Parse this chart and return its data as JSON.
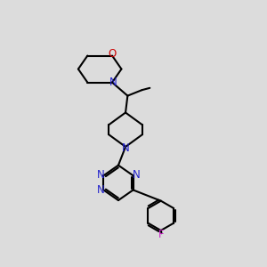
{
  "bg_color": "#dcdcdc",
  "bond_color": "#000000",
  "N_color": "#2222cc",
  "O_color": "#cc0000",
  "F_color": "#cc22cc",
  "lw": 1.5,
  "fs": 8.5,
  "figsize": [
    3.0,
    3.0
  ],
  "dpi": 100,
  "xlim": [
    -1.0,
    9.0
  ],
  "ylim": [
    -1.0,
    9.0
  ]
}
